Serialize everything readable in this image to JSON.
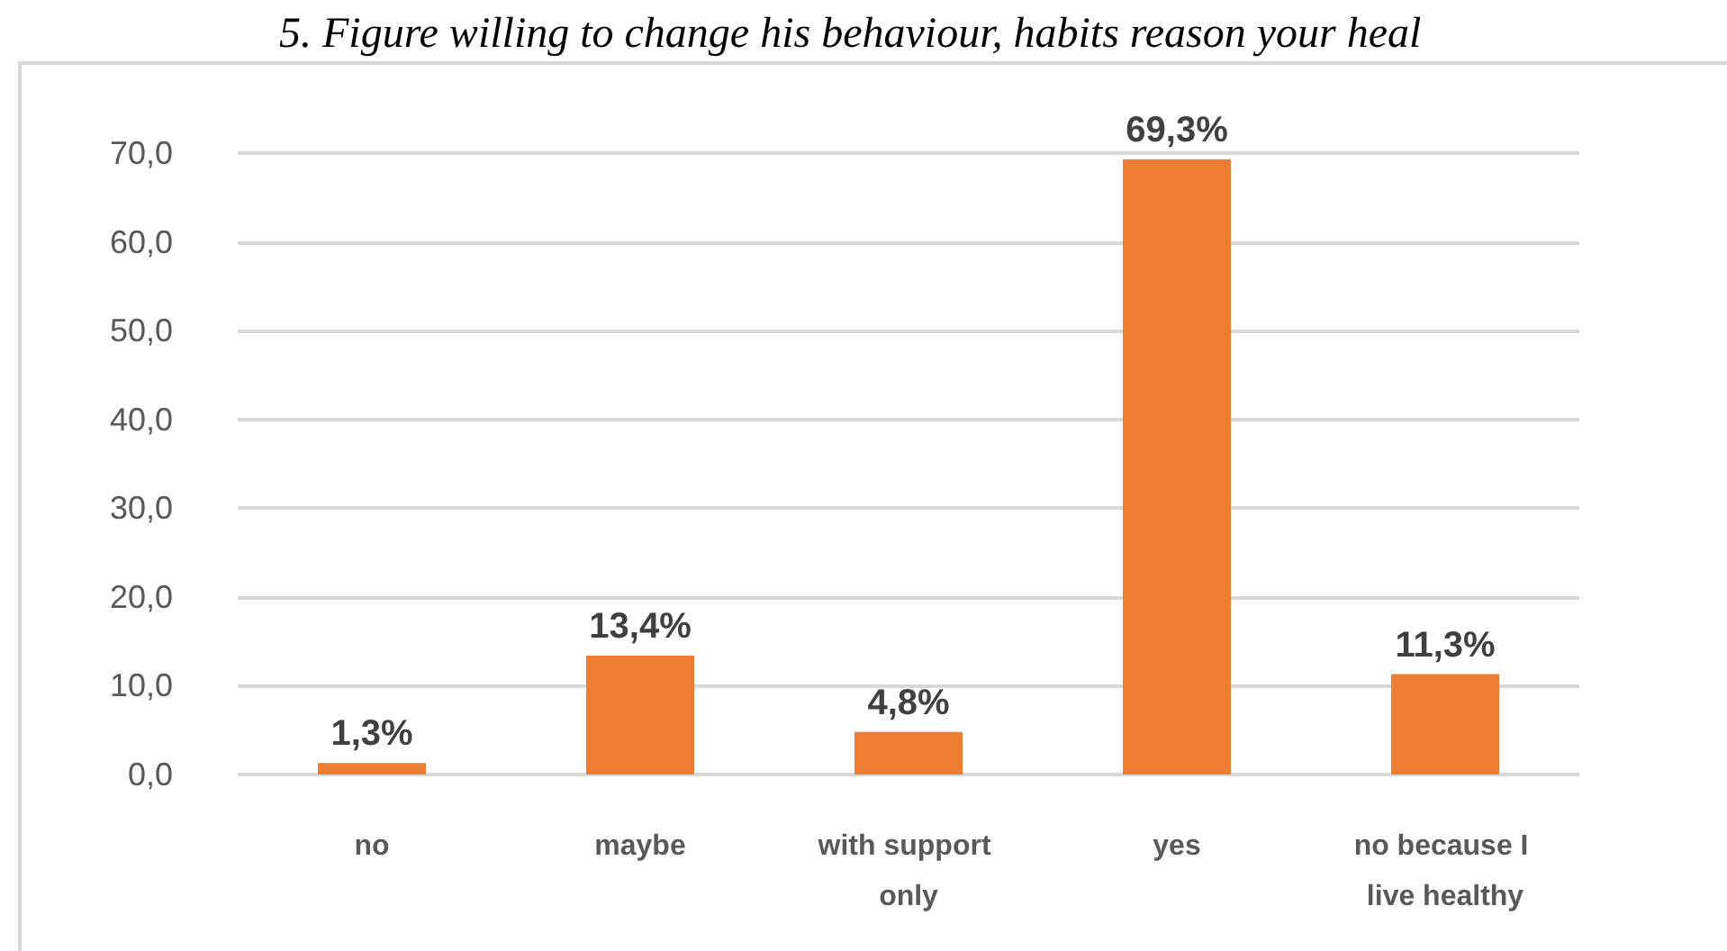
{
  "chart_data": {
    "type": "bar",
    "title": "5. Figure willing to change his behaviour, habits reason your heal",
    "categories": [
      "no",
      "maybe",
      "with support only",
      "yes",
      "no because I live healthy"
    ],
    "values": [
      1.3,
      13.4,
      4.8,
      69.3,
      11.3
    ],
    "color": "#ed7d31",
    "value_labels": [
      "1,3%",
      "13,4%",
      "4,8%",
      "69,3%",
      "11,3%"
    ],
    "ylim": [
      0,
      70
    ],
    "yticks": [
      {
        "value": 0,
        "label": "0,0"
      },
      {
        "value": 10,
        "label": "10,0"
      },
      {
        "value": 20,
        "label": "20,0"
      },
      {
        "value": 30,
        "label": "30,0"
      },
      {
        "value": 40,
        "label": "40,0"
      },
      {
        "value": 50,
        "label": "50,0"
      },
      {
        "value": 60,
        "label": "60,0"
      },
      {
        "value": 70,
        "label": "70,0"
      }
    ],
    "grid": "y"
  }
}
